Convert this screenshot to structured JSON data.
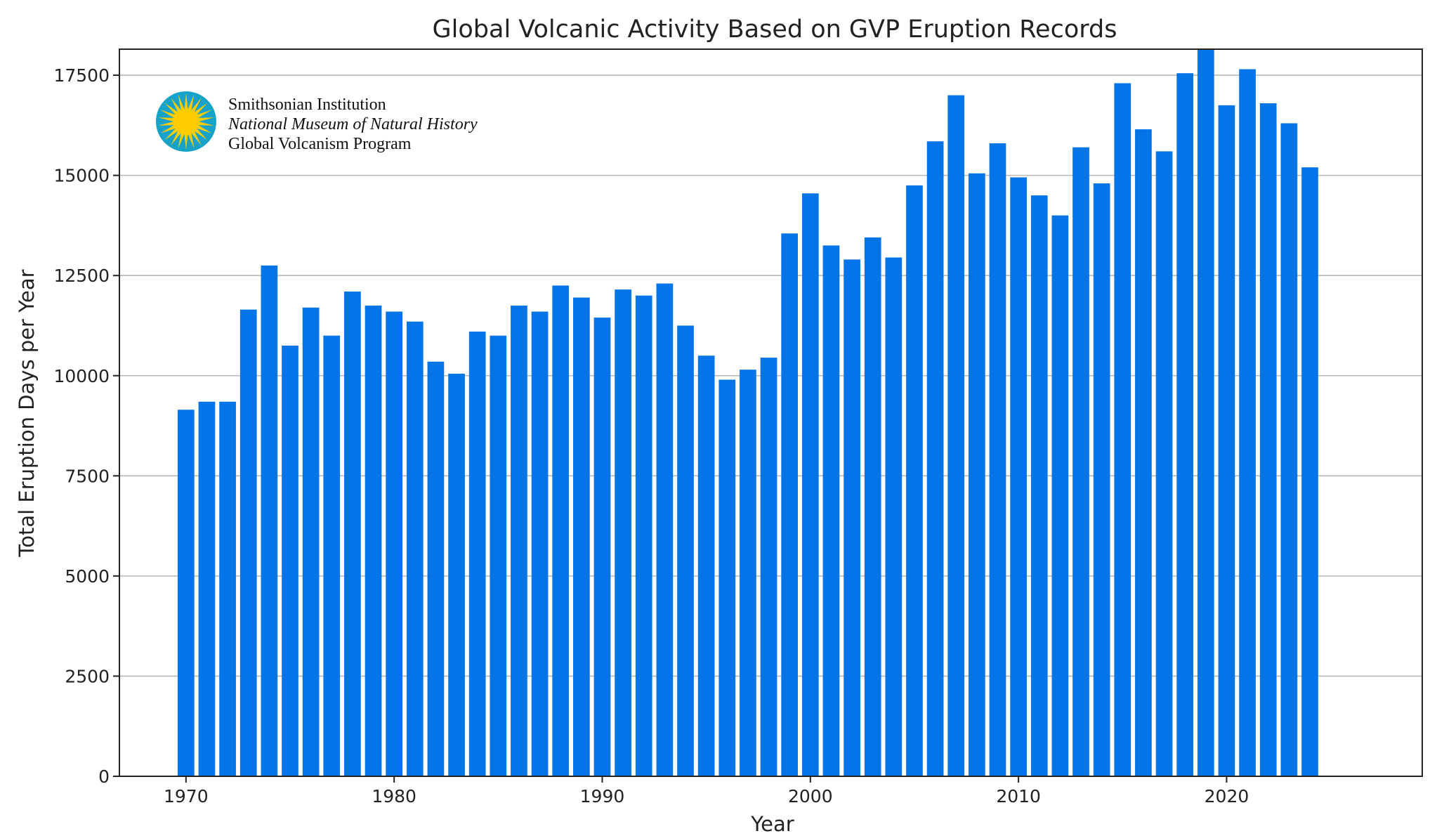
{
  "colors": {
    "bar": "#0474e6",
    "grid": "#b8b8b8",
    "frame": "#222222",
    "logo_sun": "#ffcc00",
    "logo_ring": "#17a3c9"
  },
  "logo": {
    "icon": "smithsonian-sun-icon",
    "line1": "Smithsonian Institution",
    "line2": "National Museum of Natural History",
    "line3": "Global Volcanism Program"
  },
  "chart_data": {
    "type": "bar",
    "title": "Global Volcanic Activity Based on GVP Eruption Records",
    "xlabel": "Year",
    "ylabel": "Total Eruption Days per Year",
    "xlim": [
      1966.8,
      2029.4
    ],
    "ylim": [
      0,
      18150
    ],
    "xticks": [
      1970,
      1980,
      1990,
      2000,
      2010,
      2020
    ],
    "yticks": [
      0,
      2500,
      5000,
      7500,
      10000,
      12500,
      15000,
      17500
    ],
    "grid": "horizontal",
    "x": [
      1970,
      1971,
      1972,
      1973,
      1974,
      1975,
      1976,
      1977,
      1978,
      1979,
      1980,
      1981,
      1982,
      1983,
      1984,
      1985,
      1986,
      1987,
      1988,
      1989,
      1990,
      1991,
      1992,
      1993,
      1994,
      1995,
      1996,
      1997,
      1998,
      1999,
      2000,
      2001,
      2002,
      2003,
      2004,
      2005,
      2006,
      2007,
      2008,
      2009,
      2010,
      2011,
      2012,
      2013,
      2014,
      2015,
      2016,
      2017,
      2018,
      2019,
      2020,
      2021,
      2022,
      2023,
      2024
    ],
    "values": [
      9150,
      9350,
      9350,
      11650,
      12750,
      10750,
      11700,
      11000,
      12100,
      11750,
      11600,
      11350,
      10350,
      10050,
      11100,
      11000,
      11750,
      11600,
      12250,
      11950,
      11450,
      12150,
      12000,
      12300,
      11250,
      10500,
      9900,
      10150,
      10450,
      13550,
      14550,
      13250,
      12900,
      13450,
      12950,
      14750,
      15850,
      17000,
      15050,
      15800,
      14950,
      14500,
      14000,
      15700,
      14800,
      17300,
      16150,
      15600,
      17550,
      18150,
      16750,
      17650,
      16800,
      16300,
      15200
    ]
  }
}
